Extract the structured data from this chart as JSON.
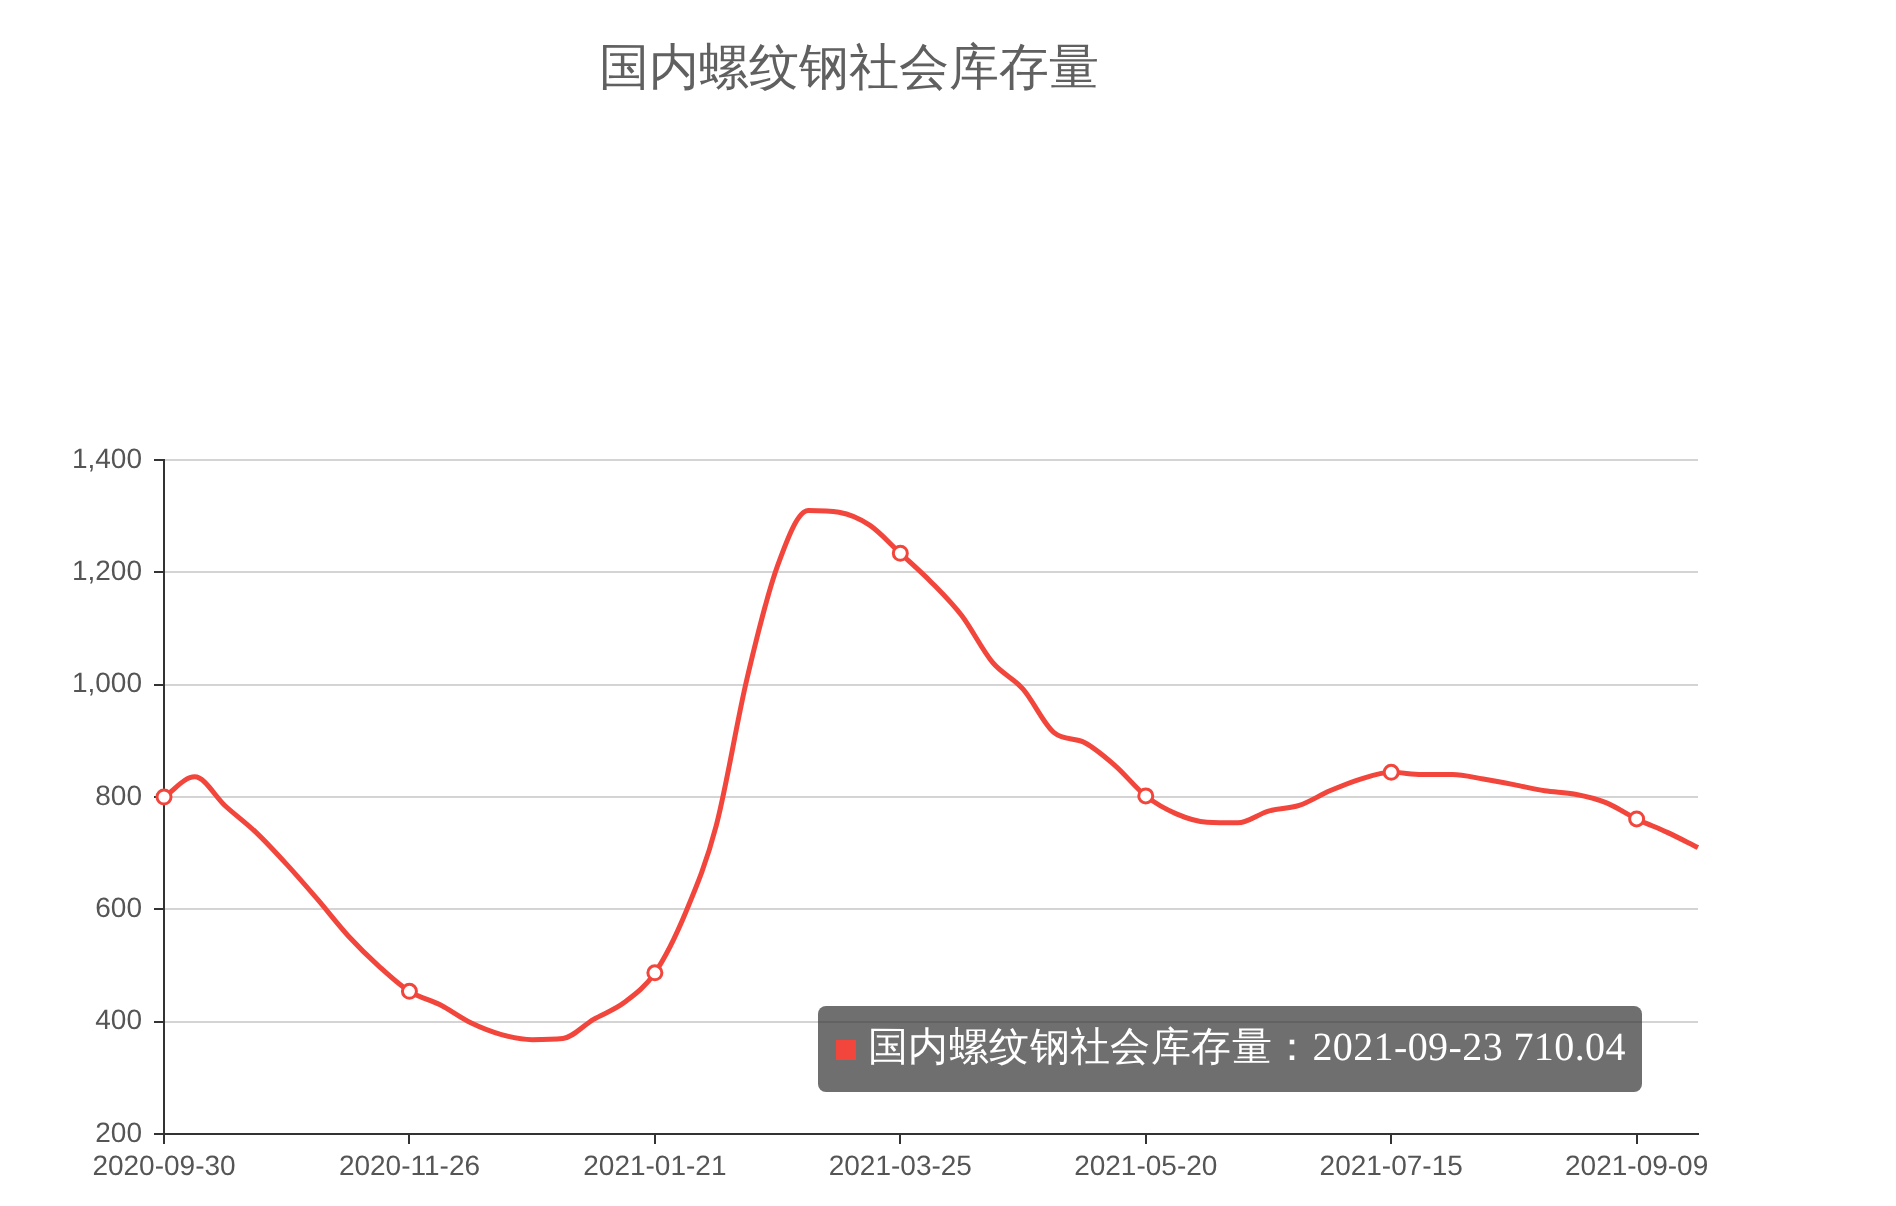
{
  "chart_data": {
    "type": "line",
    "title": "国内螺纹钢社会库存量",
    "categories": [
      "2020-09-30",
      null,
      null,
      null,
      null,
      null,
      null,
      null,
      "2020-11-26",
      null,
      null,
      null,
      null,
      null,
      null,
      null,
      "2021-01-21",
      null,
      null,
      null,
      null,
      null,
      null,
      null,
      "2021-03-25",
      null,
      null,
      null,
      null,
      null,
      null,
      null,
      "2021-05-20",
      null,
      null,
      null,
      null,
      null,
      null,
      null,
      "2021-07-15",
      null,
      null,
      null,
      null,
      null,
      null,
      null,
      "2021-09-09",
      null,
      null
    ],
    "series": [
      {
        "color": "#f2463c",
        "values": [
          800,
          836,
          784,
          737,
          680,
          618,
          553,
          499,
          454,
          430,
          398,
          377,
          368,
          370,
          404,
          434,
          487,
          594,
          749,
          1010,
          1212,
          1310,
          1307,
          1284,
          1234,
          1183,
          1123,
          1040,
          992,
          915,
          897,
          856,
          802,
          770,
          755,
          754,
          775,
          785,
          811,
          832,
          844,
          840,
          840,
          832,
          822,
          811,
          805,
          790,
          761,
          737,
          710.04
        ]
      },
      {
        "type": "scatter",
        "color": "#f2463c",
        "values": [
          800,
          null,
          null,
          null,
          null,
          null,
          null,
          null,
          454,
          null,
          null,
          null,
          null,
          null,
          null,
          null,
          487,
          null,
          null,
          null,
          null,
          null,
          null,
          null,
          1234,
          null,
          null,
          null,
          null,
          null,
          null,
          null,
          802,
          null,
          null,
          null,
          null,
          null,
          null,
          null,
          844,
          null,
          null,
          null,
          null,
          null,
          null,
          null,
          761,
          null,
          null
        ]
      }
    ],
    "ylim": [
      200,
      1400
    ],
    "yticks": [
      200,
      400,
      600,
      800,
      {
        "value": 1000,
        "label": "1,000"
      },
      {
        "value": 1200,
        "label": "1,200"
      },
      {
        "value": 1400,
        "label": "1,400"
      }
    ],
    "grid": "y",
    "line_style": "solid",
    "annotations": [
      "国内螺纹钢社会库存量：2021-09-23 710.04"
    ]
  }
}
